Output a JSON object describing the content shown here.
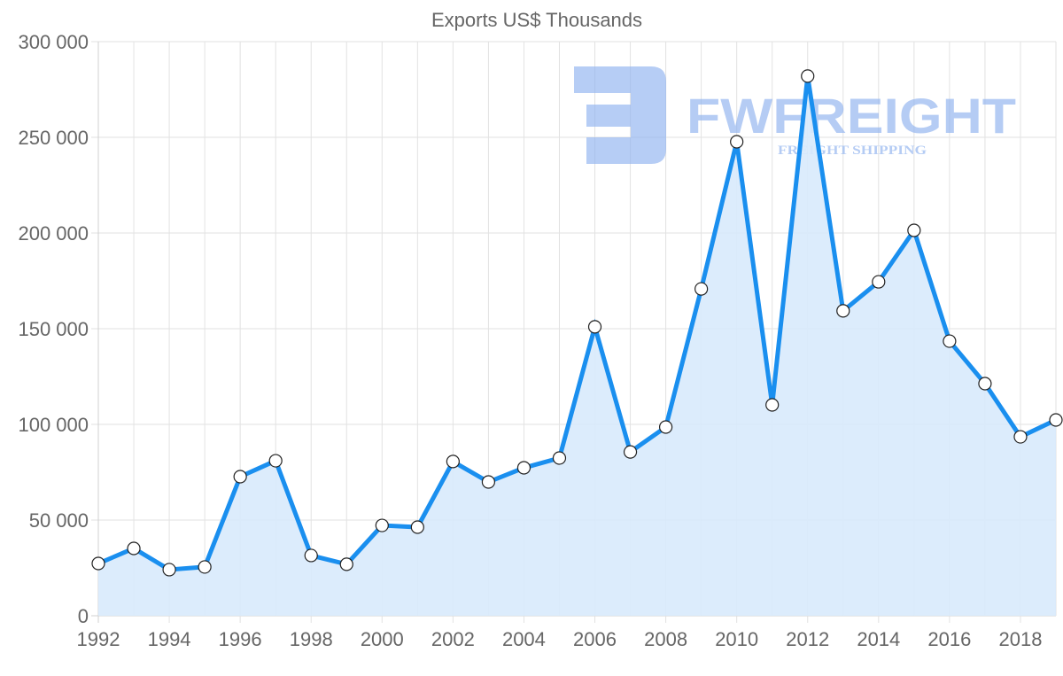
{
  "chart_data": {
    "type": "area",
    "title": "Exports US$ Thousands",
    "xlabel": "",
    "ylabel": "",
    "ylim": [
      0,
      300000
    ],
    "y_ticks": [
      0,
      50000,
      100000,
      150000,
      200000,
      250000,
      300000
    ],
    "y_tick_labels": [
      "0",
      "50 000",
      "100 000",
      "150 000",
      "200 000",
      "250 000",
      "300 000"
    ],
    "x_tick_labels": [
      "1992",
      "1994",
      "1996",
      "1998",
      "2000",
      "2002",
      "2004",
      "2006",
      "2008",
      "2010",
      "2012",
      "2014",
      "2016",
      "2018"
    ],
    "grid": true,
    "legend": null,
    "categories": [
      1992,
      1993,
      1994,
      1995,
      1996,
      1997,
      1998,
      1999,
      2000,
      2001,
      2002,
      2003,
      2004,
      2005,
      2006,
      2007,
      2008,
      2009,
      2010,
      2011,
      2012,
      2013,
      2014,
      2015,
      2016,
      2017,
      2018,
      2019
    ],
    "series": [
      {
        "name": "Exports",
        "values": [
          27300,
          35200,
          24100,
          25500,
          72700,
          81000,
          31500,
          26900,
          47200,
          46300,
          80600,
          69900,
          77300,
          82400,
          151000,
          85600,
          98600,
          170800,
          247700,
          110200,
          282000,
          159300,
          174500,
          201400,
          143500,
          121300,
          93500,
          102300
        ]
      }
    ],
    "colors": {
      "line": "#1a8fef",
      "fill": "#d8eafc",
      "marker_fill": "#ffffff",
      "marker_stroke": "#222222"
    }
  },
  "watermark": {
    "brand": "FWFREIGHT",
    "tagline": "FREIGHT SHIPPING",
    "color": "#8fb2ef"
  }
}
